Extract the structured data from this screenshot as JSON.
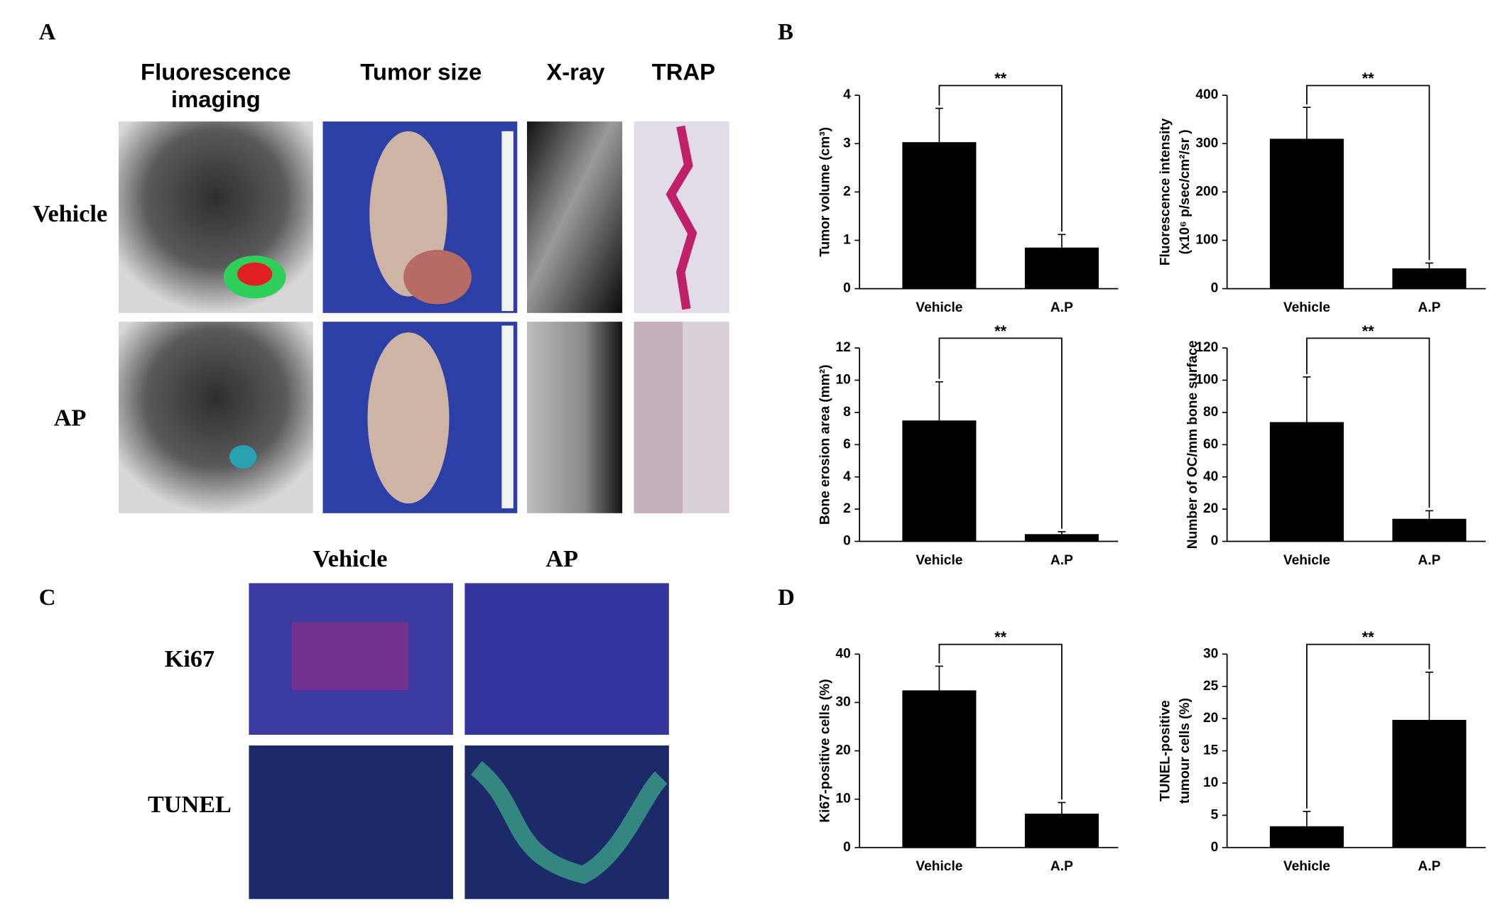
{
  "panel_labels": [
    "A",
    "B",
    "C",
    "D"
  ],
  "panel_a": {
    "columns": [
      [
        "Fluorescence",
        "imaging"
      ],
      "Tumor size",
      "X-ray",
      "TRAP"
    ],
    "rows": [
      "Vehicle",
      "AP"
    ]
  },
  "panel_c": {
    "columns": [
      "Vehicle",
      "AP"
    ],
    "rows": [
      "Ki67",
      "TUNEL"
    ]
  },
  "chart_data": [
    {
      "type": "bar",
      "ylabel": [
        "Tumor volume (cm³)"
      ],
      "categories": [
        "Vehicle",
        "A.P"
      ],
      "values": [
        3.03,
        0.85
      ],
      "errors": [
        0.7,
        0.27
      ],
      "color": "#000000",
      "ylim": [
        0,
        4
      ],
      "yticks": [
        0,
        1,
        2,
        3,
        4
      ],
      "annotation": "**"
    },
    {
      "type": "bar",
      "ylabel": [
        "Fluorescence intensity",
        "(x10⁶ p/sec/cm²/sr )"
      ],
      "categories": [
        "Vehicle",
        "A.P"
      ],
      "values": [
        310,
        42
      ],
      "errors": [
        65,
        11
      ],
      "color": "#000000",
      "ylim": [
        0,
        400
      ],
      "yticks": [
        0,
        100,
        200,
        300,
        400
      ],
      "annotation": "**"
    },
    {
      "type": "bar",
      "ylabel": [
        "Bone erosion area (mm²)"
      ],
      "categories": [
        "Vehicle",
        "A.P"
      ],
      "values": [
        7.5,
        0.45
      ],
      "errors": [
        2.4,
        0.15
      ],
      "color": "#000000",
      "ylim": [
        0,
        12
      ],
      "yticks": [
        0,
        2,
        4,
        6,
        8,
        10,
        12
      ],
      "annotation": "**"
    },
    {
      "type": "bar",
      "ylabel": [
        "Number of OC/mm bone surface"
      ],
      "categories": [
        "Vehicle",
        "A.P"
      ],
      "values": [
        74,
        14
      ],
      "errors": [
        28,
        5
      ],
      "color": "#000000",
      "ylim": [
        0,
        120
      ],
      "yticks": [
        0,
        20,
        40,
        60,
        80,
        100,
        120
      ],
      "annotation": "**"
    },
    {
      "type": "bar",
      "ylabel": [
        "Ki67-positive cells (%)"
      ],
      "categories": [
        "Vehicle",
        "A.P"
      ],
      "values": [
        32.5,
        7
      ],
      "errors": [
        5,
        2.3
      ],
      "color": "#000000",
      "ylim": [
        0,
        40
      ],
      "yticks": [
        0,
        10,
        20,
        30,
        40
      ],
      "annotation": "**"
    },
    {
      "type": "bar",
      "ylabel": [
        "TUNEL-positive",
        "tumour cells (%)"
      ],
      "categories": [
        "Vehicle",
        "A.P"
      ],
      "values": [
        3.3,
        19.8
      ],
      "errors": [
        2.3,
        7.4
      ],
      "color": "#000000",
      "ylim": [
        0,
        30
      ],
      "yticks": [
        0,
        5,
        10,
        15,
        20,
        25,
        30
      ],
      "annotation": "**"
    }
  ]
}
